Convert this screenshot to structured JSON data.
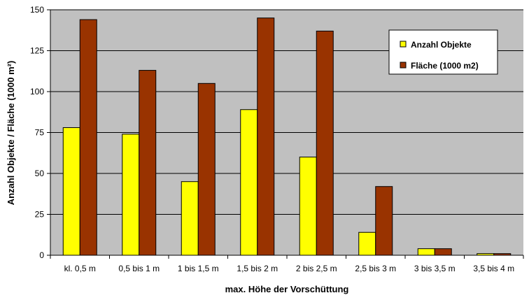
{
  "chart_data": {
    "type": "bar",
    "title": "",
    "xlabel": "max. Höhe der Vorschüttung",
    "ylabel": "Anzahl Objekte / Fläche (1000 m²)",
    "ylim": [
      0,
      150
    ],
    "yticks": [
      0,
      25,
      50,
      75,
      100,
      125,
      150
    ],
    "grid": true,
    "legend_position": "top-right",
    "categories": [
      "kl. 0,5 m",
      "0,5 bis 1 m",
      "1 bis 1,5 m",
      "1,5 bis 2 m",
      "2 bis 2,5 m",
      "2,5 bis 3 m",
      "3 bis 3,5 m",
      "3,5 bis 4 m"
    ],
    "series": [
      {
        "name": "Anzahl Objekte",
        "color": "#ffff00",
        "values": [
          78,
          74,
          45,
          89,
          60,
          14,
          4,
          1
        ]
      },
      {
        "name": "Fläche (1000 m2)",
        "color": "#993300",
        "values": [
          144,
          113,
          105,
          145,
          137,
          42,
          4,
          1
        ]
      }
    ],
    "plot_background": "#c0c0c0"
  }
}
